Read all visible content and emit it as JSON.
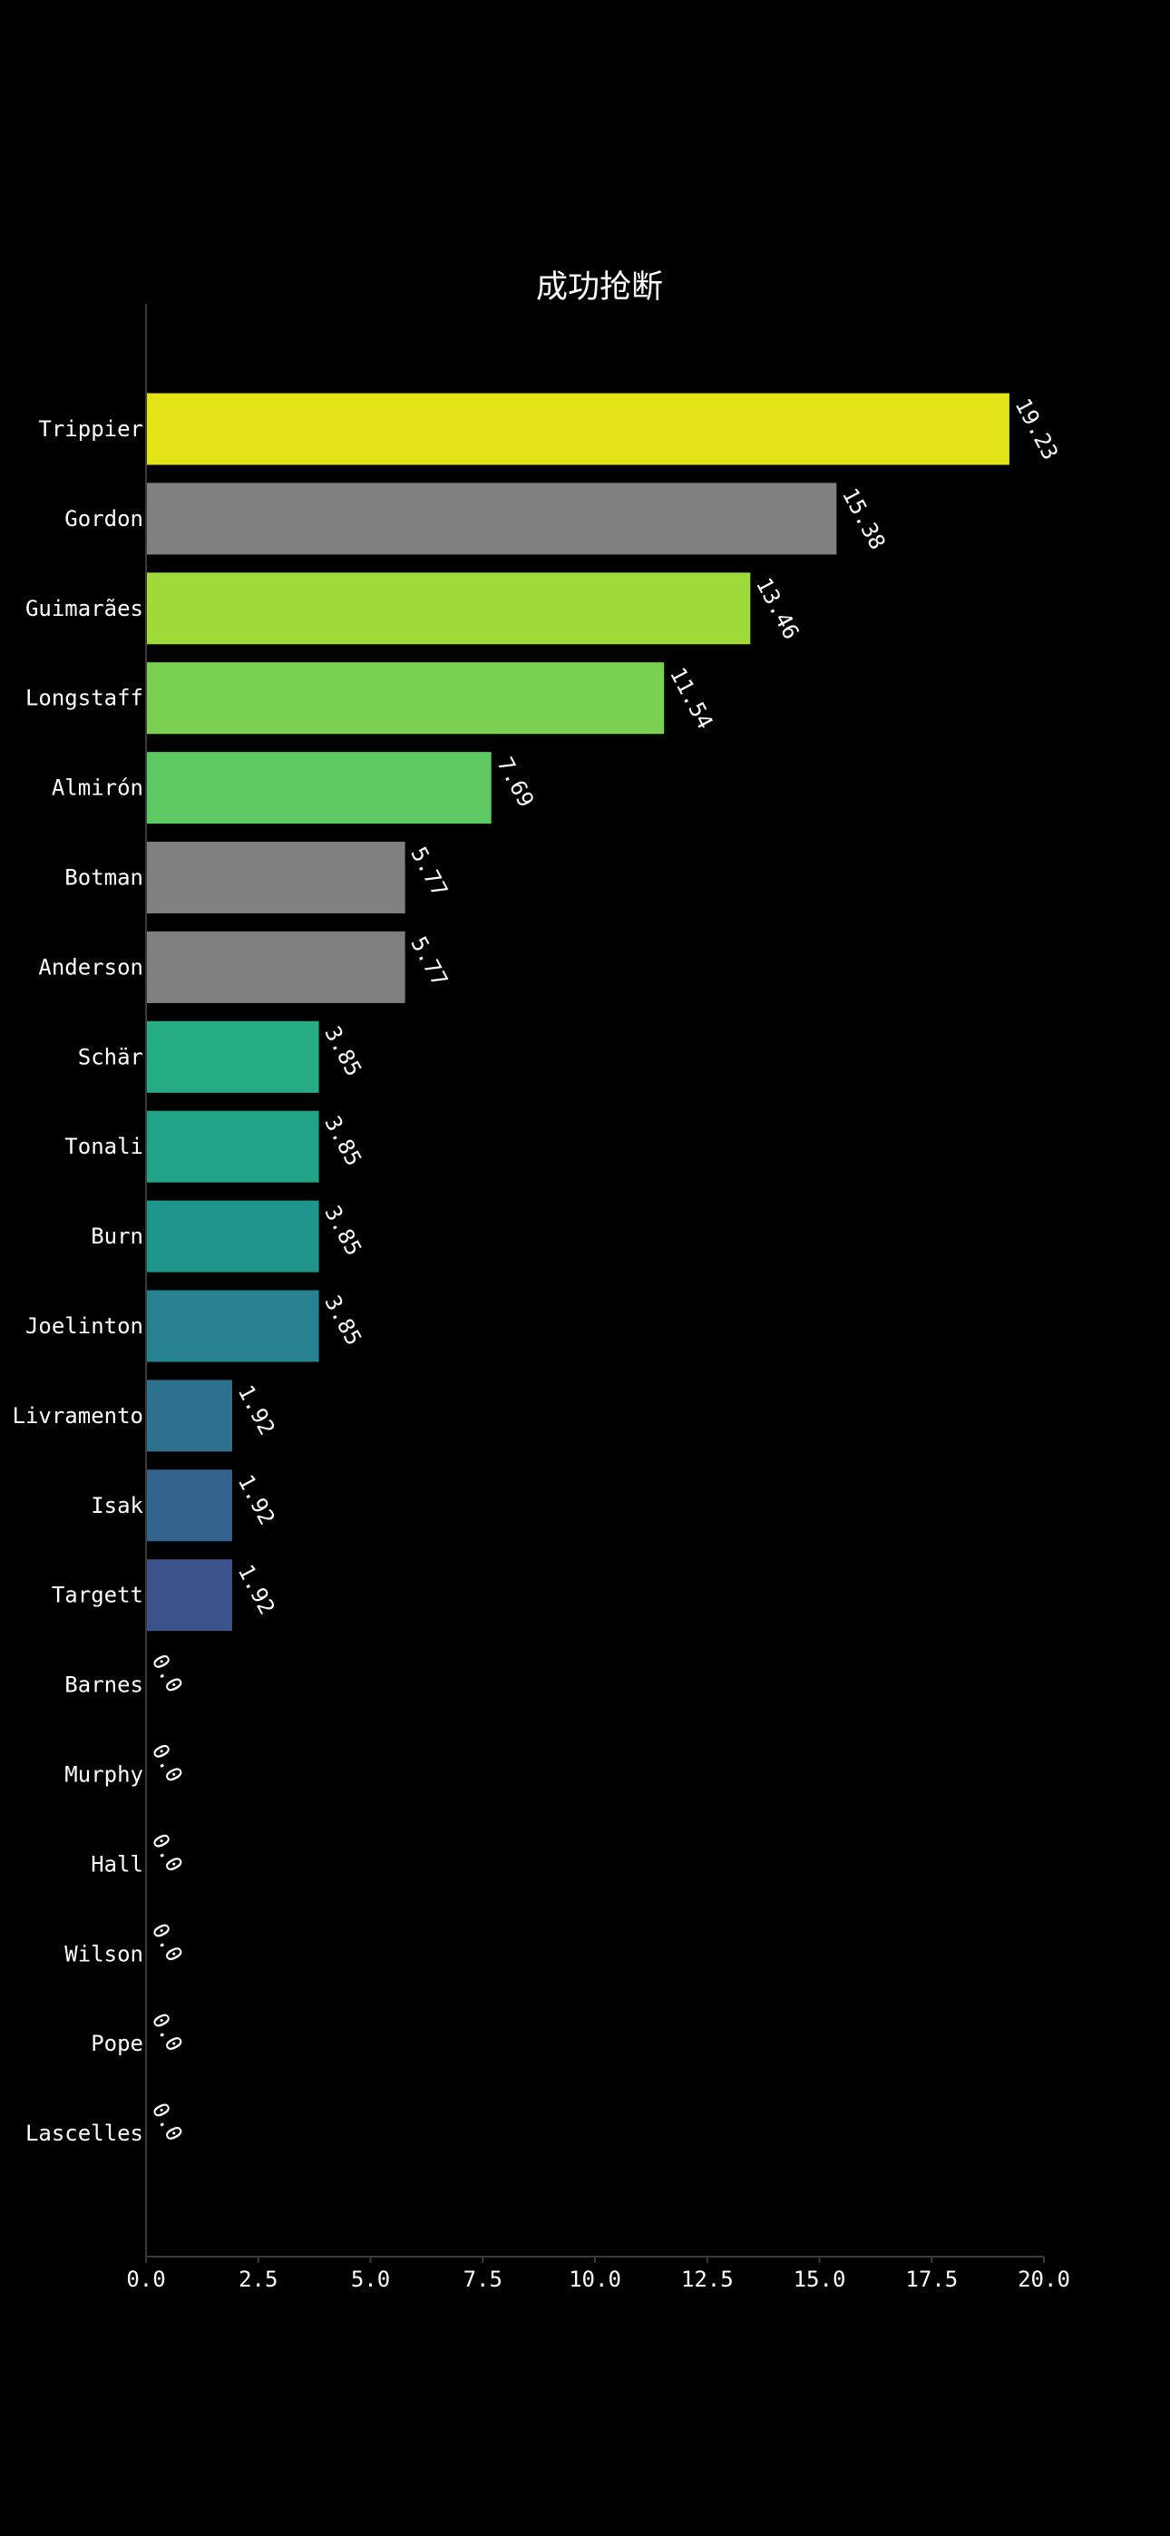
{
  "chart_data": {
    "type": "bar",
    "orientation": "horizontal",
    "title": "成功抢断",
    "xlabel": "",
    "ylabel": "",
    "xlim": [
      0,
      20
    ],
    "xticks": [
      "0.0",
      "2.5",
      "5.0",
      "7.5",
      "10.0",
      "12.5",
      "15.0",
      "17.5",
      "20.0"
    ],
    "grid": false,
    "categories": [
      "Trippier",
      "Gordon",
      "Guimarães",
      "Longstaff",
      "Almirón",
      "Botman",
      "Anderson",
      "Schär",
      "Tonali",
      "Burn",
      "Joelinton",
      "Livramento",
      "Isak",
      "Targett",
      "Barnes",
      "Murphy",
      "Hall",
      "Wilson",
      "Pope",
      "Lascelles"
    ],
    "values": [
      19.23,
      15.38,
      13.46,
      11.54,
      7.69,
      5.77,
      5.77,
      3.85,
      3.85,
      3.85,
      3.85,
      1.92,
      1.92,
      1.92,
      0.0,
      0.0,
      0.0,
      0.0,
      0.0,
      0.0
    ],
    "value_labels": [
      "19.23",
      "15.38",
      "13.46",
      "11.54",
      "7.69",
      "5.77",
      "5.77",
      "3.85",
      "3.85",
      "3.85",
      "3.85",
      "1.92",
      "1.92",
      "1.92",
      "0.0",
      "0.0",
      "0.0",
      "0.0",
      "0.0",
      "0.0"
    ],
    "colors": [
      "#e2e418",
      "#808080",
      "#9fda3a",
      "#7ad151",
      "#5ec962",
      "#808080",
      "#808080",
      "#25ac82",
      "#20a386",
      "#1f958b",
      "#26828e",
      "#2d718e",
      "#33638d",
      "#3b528b",
      "#440154",
      "#440154",
      "#440154",
      "#440154",
      "#440154",
      "#440154"
    ],
    "background": "#000000",
    "text_color": "#ffffff",
    "axis_color": "#3a3a3a"
  }
}
